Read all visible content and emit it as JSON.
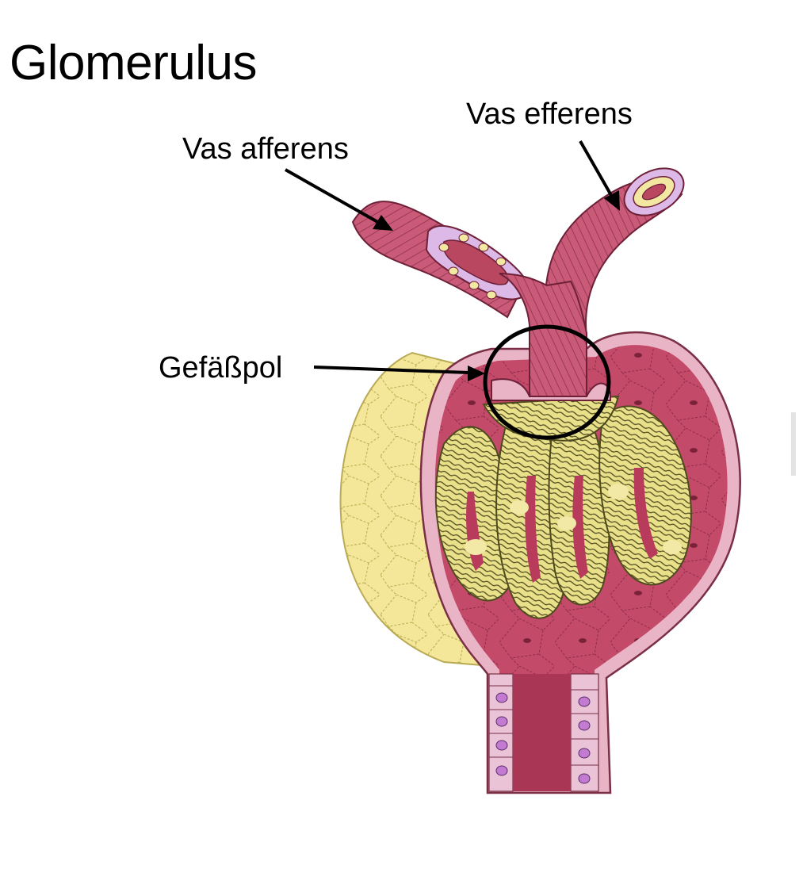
{
  "title": "Glomerulus",
  "labels": {
    "vas_afferens": "Vas afferens",
    "vas_efferens": "Vas efferens",
    "gefaesspol": "Gefäßpol"
  },
  "colors": {
    "vessel_pink": "#c95a78",
    "lumen_red": "#a83654",
    "capsule_yellow": "#f4e79a",
    "capillary_yellow": "#e9e08a",
    "wall_pink": "#e8b4c6",
    "interior_pink": "#c44a6a",
    "outline": "#000000"
  }
}
